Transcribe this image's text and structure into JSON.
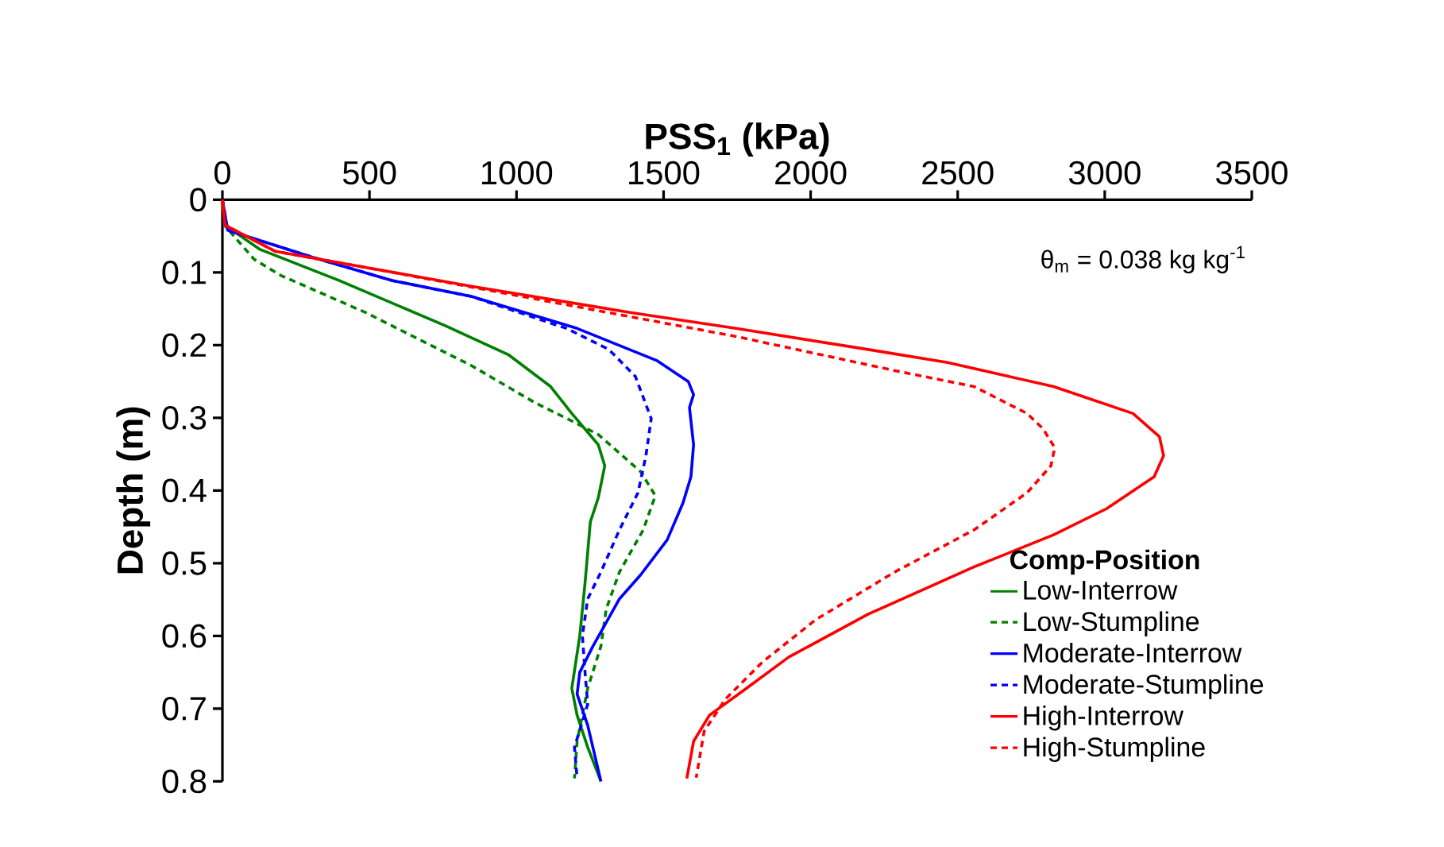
{
  "chart_data": {
    "type": "line",
    "xlabel": "PSS$_{1}$ (kPa)",
    "ylabel": "Depth (m)",
    "legend_title": "Comp-Position",
    "legend": "bottom right",
    "annotations": [
      "θ$_{m}$ = 0.038 kg kg$^{-1}$"
    ],
    "xlim": [
      0,
      3500
    ],
    "xticks": [
      0,
      500,
      1000,
      1500,
      2000,
      2500,
      3000,
      3500
    ],
    "ylim": [
      0.8,
      0
    ],
    "yticks": [
      0,
      0.1,
      0.2,
      0.3,
      0.4,
      0.5,
      0.6,
      0.7,
      0.8
    ],
    "series": [
      {
        "name": "Low-Interrow",
        "color": "#008000",
        "line_style": "solid",
        "x": [
          0,
          9,
          126,
          396,
          756,
          972,
          1116,
          1188,
          1278,
          1300,
          1278,
          1251,
          1233,
          1215,
          1188,
          1206,
          1242,
          1287
        ],
        "values": [
          0,
          0.035,
          0.068,
          0.111,
          0.173,
          0.213,
          0.257,
          0.294,
          0.337,
          0.366,
          0.41,
          0.443,
          0.527,
          0.6,
          0.672,
          0.709,
          0.753,
          0.8
        ]
      },
      {
        "name": "Low-Stumpline",
        "color": "#008000",
        "line_style": "dashed",
        "x": [
          0,
          9,
          108,
          198,
          486,
          846,
          1062,
          1206,
          1278,
          1422,
          1472,
          1431,
          1350,
          1305,
          1287,
          1242,
          1206,
          1197
        ],
        "values": [
          0,
          0.036,
          0.082,
          0.104,
          0.155,
          0.228,
          0.279,
          0.308,
          0.323,
          0.374,
          0.407,
          0.454,
          0.512,
          0.563,
          0.614,
          0.672,
          0.745,
          0.796
        ]
      },
      {
        "name": "Moderate-Interrow",
        "color": "#0000ff",
        "line_style": "solid",
        "x": [
          0,
          18,
          306,
          576,
          846,
          1206,
          1476,
          1584,
          1602,
          1588,
          1602,
          1593,
          1566,
          1512,
          1422,
          1350,
          1260,
          1215,
          1206,
          1242,
          1287
        ],
        "values": [
          0,
          0.042,
          0.079,
          0.111,
          0.133,
          0.177,
          0.221,
          0.25,
          0.268,
          0.286,
          0.337,
          0.381,
          0.417,
          0.468,
          0.516,
          0.549,
          0.614,
          0.65,
          0.68,
          0.723,
          0.8
        ]
      },
      {
        "name": "Moderate-Stumpline",
        "color": "#0000ff",
        "line_style": "dashed",
        "x": [
          0,
          18,
          306,
          576,
          846,
          1170,
          1314,
          1404,
          1458,
          1440,
          1413,
          1350,
          1287,
          1242,
          1224,
          1233,
          1242,
          1197,
          1206
        ],
        "values": [
          0,
          0.042,
          0.079,
          0.111,
          0.133,
          0.177,
          0.206,
          0.243,
          0.301,
          0.352,
          0.403,
          0.454,
          0.512,
          0.549,
          0.6,
          0.65,
          0.694,
          0.753,
          0.796
        ]
      },
      {
        "name": "High-Interrow",
        "color": "#ff0000",
        "line_style": "solid",
        "x": [
          0,
          9,
          180,
          486,
          846,
          1386,
          1746,
          2196,
          2466,
          2826,
          3096,
          3186,
          3200,
          3168,
          3006,
          2826,
          2556,
          2196,
          1926,
          1782,
          1656,
          1602,
          1579
        ],
        "values": [
          0,
          0.035,
          0.071,
          0.093,
          0.119,
          0.155,
          0.177,
          0.206,
          0.224,
          0.257,
          0.294,
          0.326,
          0.352,
          0.381,
          0.425,
          0.461,
          0.505,
          0.57,
          0.629,
          0.672,
          0.709,
          0.745,
          0.796
        ]
      },
      {
        "name": "High-Stumpline",
        "color": "#ff0000",
        "line_style": "dashed",
        "x": [
          0,
          9,
          180,
          486,
          846,
          1746,
          2286,
          2556,
          2736,
          2790,
          2830,
          2817,
          2736,
          2556,
          2286,
          2016,
          1836,
          1710,
          1638,
          1611
        ],
        "values": [
          0,
          0.035,
          0.071,
          0.093,
          0.12,
          0.188,
          0.235,
          0.257,
          0.294,
          0.315,
          0.341,
          0.366,
          0.403,
          0.454,
          0.512,
          0.578,
          0.636,
          0.687,
          0.731,
          0.795
        ]
      }
    ]
  }
}
